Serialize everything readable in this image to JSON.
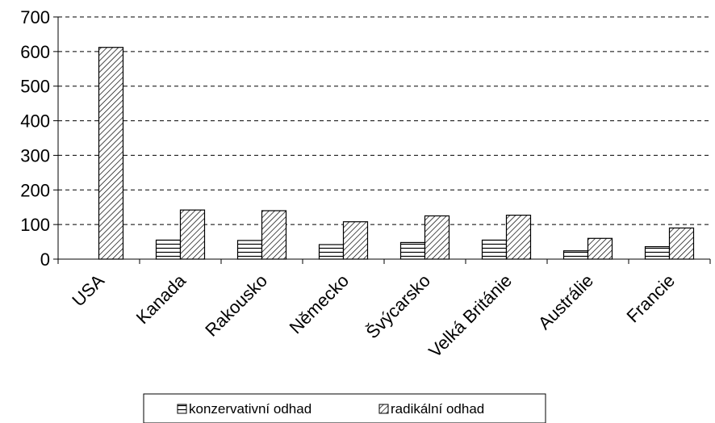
{
  "chart_data": {
    "type": "bar",
    "categories": [
      "USA",
      "Kanada",
      "Rakousko",
      "Německo",
      "Švýcarsko",
      "Velká Británie",
      "Austrálie",
      "Francie"
    ],
    "series": [
      {
        "name": "konzervativní odhad",
        "values": [
          0,
          55,
          54,
          42,
          48,
          55,
          24,
          36
        ],
        "pattern": "horizontal-lines"
      },
      {
        "name": "radikální odhad",
        "values": [
          612,
          142,
          140,
          108,
          125,
          127,
          60,
          90
        ],
        "pattern": "diagonal-hatch"
      }
    ],
    "title": "",
    "xlabel": "",
    "ylabel": "",
    "ylim": [
      0,
      700
    ],
    "yticks": [
      0,
      100,
      200,
      300,
      400,
      500,
      600,
      700
    ],
    "grid": "horizontal-dashed",
    "legend_position": "bottom"
  }
}
